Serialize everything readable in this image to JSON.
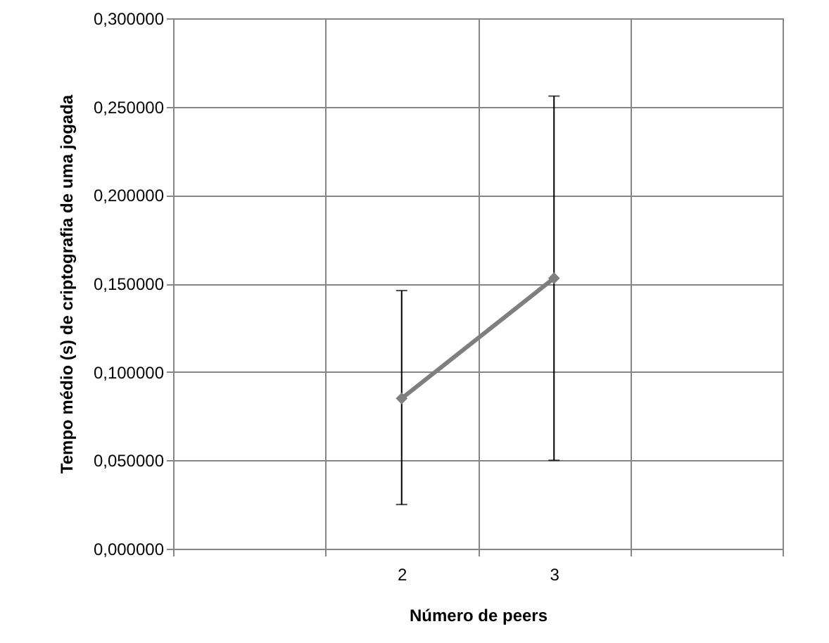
{
  "chart_data": {
    "type": "line",
    "xlabel": "Número de peers",
    "ylabel": "Tempo médio (s) de criptografia de uma jogada",
    "categories": [
      null,
      "2",
      "3",
      null
    ],
    "series": [
      {
        "color": "#7f7f7f",
        "values": [
          null,
          0.085,
          0.153,
          null
        ],
        "errors": [
          null,
          [
            0.025,
            0.146
          ],
          [
            0.05,
            0.256
          ],
          null
        ]
      }
    ],
    "ylim": [
      0,
      0.3
    ],
    "yticks": [
      {
        "value": 0,
        "label": "0,000000"
      },
      {
        "value": 0.05,
        "label": "0,050000"
      },
      {
        "value": 0.1,
        "label": "0,100000"
      },
      {
        "value": 0.15,
        "label": "0,150000"
      },
      {
        "value": 0.2,
        "label": "0,200000"
      },
      {
        "value": 0.25,
        "label": "0,250000"
      },
      {
        "value": 0.3,
        "label": "0,300000"
      }
    ],
    "grid": true,
    "marker": "diamond",
    "line_style": "solid"
  }
}
